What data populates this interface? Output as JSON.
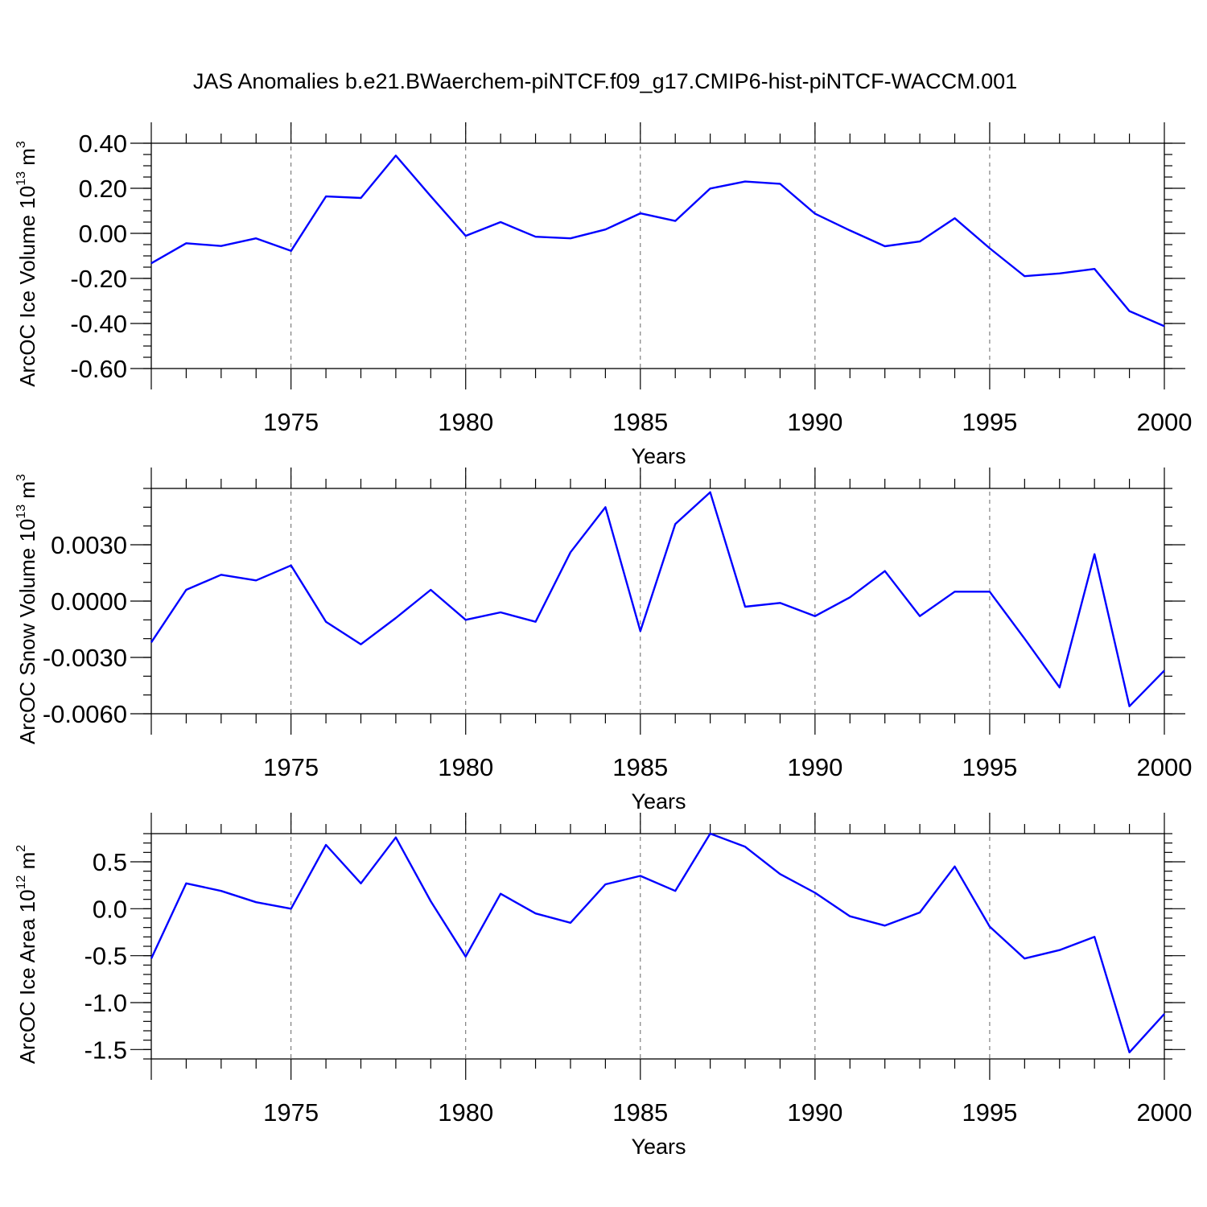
{
  "title": "JAS Anomalies b.e21.BWaerchem-piNTCF.f09_g17.CMIP6-hist-piNTCF-WACCM.001",
  "chart_data": [
    {
      "type": "line",
      "ylabel": "ArcOC Ice Volume 10",
      "ylabel_sup": "13",
      "ylabel_unit": " m",
      "ylabel_unit_sup": "3",
      "xlabel": "Years",
      "xlim": [
        1971,
        2000
      ],
      "ylim": [
        -0.6,
        0.4
      ],
      "yticks": [
        -0.6,
        -0.4,
        -0.2,
        0.0,
        0.2,
        0.4
      ],
      "ytick_labels": [
        "-0.60",
        "-0.40",
        "-0.20",
        "0.00",
        "0.20",
        "0.40"
      ],
      "yminor_step": 0.05,
      "xticks": [
        1975,
        1980,
        1985,
        1990,
        1995,
        2000
      ],
      "xtick_labels": [
        "1975",
        "1980",
        "1985",
        "1990",
        "1995",
        "2000"
      ],
      "grid": "dashed vertical at major x ticks",
      "color": "#0000ff",
      "x": [
        1971,
        1972,
        1973,
        1974,
        1975,
        1976,
        1977,
        1978,
        1979,
        1980,
        1981,
        1982,
        1983,
        1984,
        1985,
        1986,
        1987,
        1988,
        1989,
        1990,
        1991,
        1992,
        1993,
        1994,
        1995,
        1996,
        1997,
        1998,
        1999,
        2000
      ],
      "values": [
        -0.133,
        -0.044,
        -0.056,
        -0.022,
        -0.078,
        0.164,
        0.157,
        0.345,
        0.165,
        -0.011,
        0.05,
        -0.015,
        -0.022,
        0.017,
        0.089,
        0.055,
        0.199,
        0.23,
        0.22,
        0.087,
        0.013,
        -0.057,
        -0.036,
        0.067,
        -0.066,
        -0.19,
        -0.178,
        -0.158,
        -0.345,
        -0.412
      ]
    },
    {
      "type": "line",
      "ylabel": "ArcOC Snow Volume 10",
      "ylabel_sup": "13",
      "ylabel_unit": " m",
      "ylabel_unit_sup": "3",
      "xlabel": "Years",
      "xlim": [
        1971,
        2000
      ],
      "ylim": [
        -0.006,
        0.006
      ],
      "yticks": [
        -0.006,
        -0.003,
        0.0,
        0.003
      ],
      "ytick_labels": [
        "-0.0060",
        "-0.0030",
        "0.0000",
        "0.0030"
      ],
      "yminor_step": 0.001,
      "xticks": [
        1975,
        1980,
        1985,
        1990,
        1995,
        2000
      ],
      "xtick_labels": [
        "1975",
        "1980",
        "1985",
        "1990",
        "1995",
        "2000"
      ],
      "grid": "dashed vertical at major x ticks",
      "color": "#0000ff",
      "x": [
        1971,
        1972,
        1973,
        1974,
        1975,
        1976,
        1977,
        1978,
        1979,
        1980,
        1981,
        1982,
        1983,
        1984,
        1985,
        1986,
        1987,
        1988,
        1989,
        1990,
        1991,
        1992,
        1993,
        1994,
        1995,
        1996,
        1997,
        1998,
        1999,
        2000
      ],
      "values": [
        -0.0022,
        0.0006,
        0.0014,
        0.0011,
        0.0019,
        -0.0011,
        -0.0023,
        -0.0009,
        0.0006,
        -0.001,
        -0.0006,
        -0.0011,
        0.0026,
        0.005,
        -0.0016,
        0.0041,
        0.0058,
        -0.0003,
        -0.0001,
        -0.0008,
        0.0002,
        0.0016,
        -0.0008,
        0.0005,
        0.0005,
        -0.002,
        -0.0046,
        0.0025,
        -0.0056,
        -0.0037
      ]
    },
    {
      "type": "line",
      "ylabel": "ArcOC Ice Area 10",
      "ylabel_sup": "12",
      "ylabel_unit": " m",
      "ylabel_unit_sup": "2",
      "xlabel": "Years",
      "xlim": [
        1971,
        2000
      ],
      "ylim": [
        -1.6,
        0.8
      ],
      "yticks": [
        -1.5,
        -1.0,
        -0.5,
        0.0,
        0.5
      ],
      "ytick_labels": [
        "-1.5",
        "-1.0",
        "-0.5",
        "0.0",
        "0.5"
      ],
      "yminor_step": 0.1,
      "xticks": [
        1975,
        1980,
        1985,
        1990,
        1995,
        2000
      ],
      "xtick_labels": [
        "1975",
        "1980",
        "1985",
        "1990",
        "1995",
        "2000"
      ],
      "grid": "dashed vertical at major x ticks",
      "color": "#0000ff",
      "x": [
        1971,
        1972,
        1973,
        1974,
        1975,
        1976,
        1977,
        1978,
        1979,
        1980,
        1981,
        1982,
        1983,
        1984,
        1985,
        1986,
        1987,
        1988,
        1989,
        1990,
        1991,
        1992,
        1993,
        1994,
        1995,
        1996,
        1997,
        1998,
        1999,
        2000
      ],
      "values": [
        -0.53,
        0.27,
        0.19,
        0.07,
        0.0,
        0.68,
        0.27,
        0.76,
        0.08,
        -0.51,
        0.16,
        -0.05,
        -0.15,
        0.26,
        0.35,
        0.19,
        0.8,
        0.66,
        0.37,
        0.17,
        -0.08,
        -0.18,
        -0.04,
        0.45,
        -0.19,
        -0.53,
        -0.44,
        -0.3,
        -1.53,
        -1.12
      ]
    }
  ]
}
